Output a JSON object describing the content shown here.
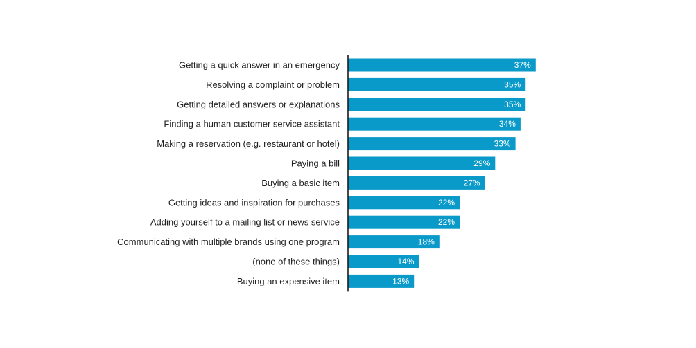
{
  "chart_data": {
    "type": "bar",
    "orientation": "horizontal",
    "title": "",
    "xlabel": "",
    "ylabel": "",
    "xlim": [
      0,
      100
    ],
    "grid": false,
    "legend": "none",
    "value_format": "percent",
    "bar_color": "#0a9ac9",
    "axis_color": "#1a1a1a",
    "label_color": "#1f1f1f",
    "value_label_color": "#ffffff",
    "categories": [
      "Getting a quick answer in an emergency",
      "Resolving a complaint or problem",
      "Getting detailed answers or explanations",
      "Finding a human customer service assistant",
      "Making a reservation (e.g. restaurant or hotel)",
      "Paying a bill",
      "Buying a basic item",
      "Getting ideas and inspiration for purchases",
      "Adding yourself to a mailing list or news service",
      "Communicating with multiple brands using one program",
      "(none of these things)",
      "Buying an expensive item"
    ],
    "values": [
      37,
      35,
      35,
      34,
      33,
      29,
      27,
      22,
      22,
      18,
      14,
      13
    ],
    "value_labels": [
      "37%",
      "35%",
      "35%",
      "34%",
      "33%",
      "29%",
      "27%",
      "22%",
      "22%",
      "18%",
      "14%",
      "13%"
    ]
  }
}
